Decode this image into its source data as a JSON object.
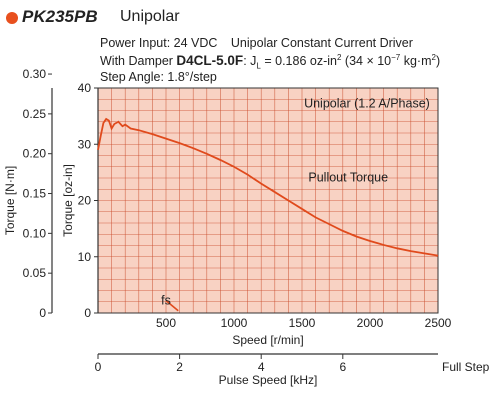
{
  "header": {
    "model": "PK235PB",
    "series": "Unipolar",
    "accent": "#e8501e",
    "info": {
      "power_input": "Power Input: 24 VDC",
      "driver": "Unipolar Constant Current Driver",
      "damper_prefix": "With Damper",
      "damper_model": "D4CL-5.0F",
      "inertia_label": "J",
      "inertia_subscript": "L",
      "inertia_value": "= 0.186 oz-in",
      "inertia_exp": "2",
      "inertia_si": "(34 × 10",
      "inertia_si_exp": "−7",
      "inertia_si_unit": "kg·m",
      "inertia_si_unit_exp": "2",
      "inertia_si_close": ")",
      "step_angle": "Step Angle: 1.8°/step"
    }
  },
  "chart_data": {
    "type": "line",
    "title": "",
    "xlabel": "Speed [r/min]",
    "ylabel": "Torque [oz-in]",
    "xlim": [
      0,
      2500
    ],
    "ylim": [
      0,
      40
    ],
    "x_ticks": [
      500,
      1000,
      1500,
      2000,
      2500
    ],
    "y_ticks": [
      0,
      10,
      20,
      30,
      40
    ],
    "grid": true,
    "plot_background": "#f8d2c3",
    "grid_color": "#c94a2a",
    "line_color": "#e04a1c",
    "secondary_y": {
      "label": "Torque [N·m]",
      "ticks": [
        "0",
        "0.05",
        "0.10",
        "0.15",
        "0.20",
        "0.25",
        "0.30"
      ],
      "values": [
        0,
        0.05,
        0.1,
        0.15,
        0.2,
        0.25,
        0.3
      ],
      "oz_in_per_unit": 141.6
    },
    "secondary_x": {
      "label": "Pulse Speed [kHz]",
      "ticks": [
        "0",
        "2",
        "4",
        "6"
      ],
      "values": [
        0,
        2,
        4,
        6
      ],
      "end_label": "Full Step",
      "rpm_per_unit": 300
    },
    "series": [
      {
        "name": "Pullout Torque",
        "x": [
          0,
          20,
          40,
          60,
          80,
          100,
          120,
          150,
          180,
          200,
          240,
          300,
          400,
          500,
          600,
          700,
          800,
          900,
          1000,
          1100,
          1200,
          1300,
          1400,
          1500,
          1600,
          1700,
          1800,
          1900,
          2000,
          2100,
          2200,
          2300,
          2400,
          2500
        ],
        "y": [
          29.0,
          31.5,
          33.8,
          34.5,
          34.2,
          32.8,
          33.6,
          34.0,
          33.2,
          33.5,
          32.8,
          32.5,
          31.8,
          31.0,
          30.2,
          29.3,
          28.3,
          27.2,
          26.0,
          24.6,
          23.0,
          21.5,
          20.0,
          18.5,
          17.0,
          15.8,
          14.6,
          13.6,
          12.8,
          12.1,
          11.5,
          11.0,
          10.6,
          10.2
        ]
      }
    ],
    "annotations": {
      "curve_type": "Unipolar (1.2 A/Phase)",
      "curve_label": "Pullout Torque",
      "fs": "fs",
      "fs_line": [
        [
          500,
          2.2
        ],
        [
          590,
          0.4
        ]
      ]
    }
  }
}
